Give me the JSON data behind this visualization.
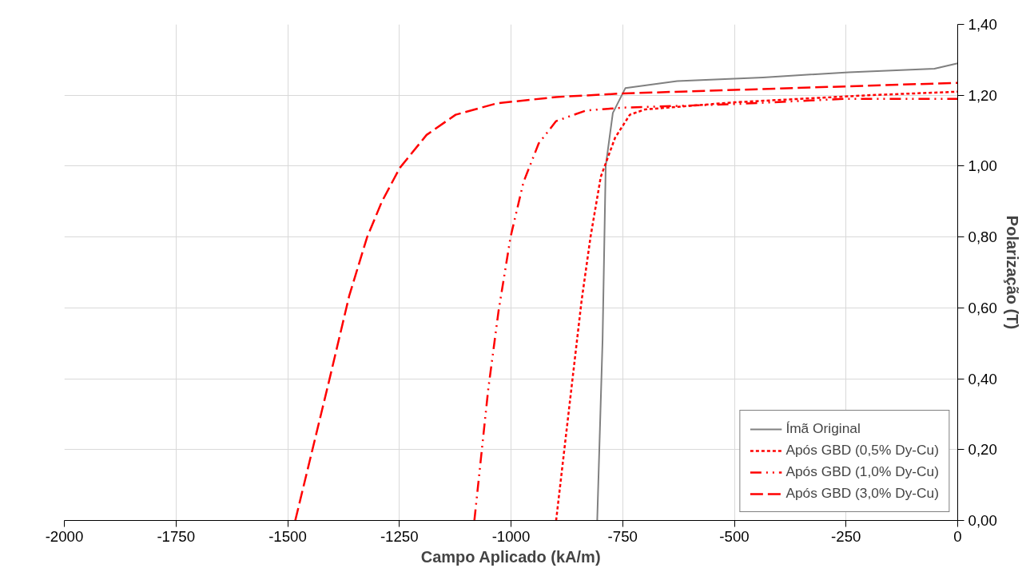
{
  "chart_data": {
    "type": "line",
    "xlabel": "Campo Aplicado (kA/m)",
    "ylabel": "Polarização (T)",
    "xlim": [
      -2000,
      0
    ],
    "xticks": [
      -2000,
      -1750,
      -1500,
      -1250,
      -1000,
      -750,
      -500,
      -250,
      0
    ],
    "ylim": [
      0,
      1.4
    ],
    "yticks": [
      {
        "value": 0,
        "label": "0,00"
      },
      {
        "value": 0.2,
        "label": "0,20"
      },
      {
        "value": 0.4,
        "label": "0,40"
      },
      {
        "value": 0.6,
        "label": "0,60"
      },
      {
        "value": 0.8,
        "label": "0,80"
      },
      {
        "value": 1.0,
        "label": "1,00"
      },
      {
        "value": 1.2,
        "label": "1,20"
      },
      {
        "value": 1.4,
        "label": "1,40"
      }
    ],
    "grid": true,
    "legend": "bottom right",
    "series": [
      {
        "name": "Ímã Original",
        "color": "#808080",
        "line_style": "solid",
        "x": [
          -807,
          -795,
          -788,
          -772,
          -744,
          -628,
          -436,
          -244,
          -52,
          0
        ],
        "values": [
          0,
          0.51,
          1.0,
          1.15,
          1.22,
          1.24,
          1.25,
          1.265,
          1.275,
          1.29
        ]
      },
      {
        "name": "Após GBD (0,5% Dy-Cu)",
        "color": "#ff0000",
        "line_style": "dotted",
        "x": [
          -899,
          -865,
          -842,
          -822,
          -799,
          -767,
          -734,
          -700,
          -500,
          -200,
          0
        ],
        "values": [
          0,
          0.37,
          0.62,
          0.8,
          0.97,
          1.08,
          1.145,
          1.16,
          1.18,
          1.2,
          1.21
        ]
      },
      {
        "name": "Após GBD (1,0% Dy-Cu)",
        "color": "#ff0000",
        "line_style": "dashdot",
        "x": [
          -1082,
          -1051,
          -1028,
          -1001,
          -972,
          -938,
          -899,
          -832,
          -750,
          -500,
          -250,
          0
        ],
        "values": [
          0,
          0.37,
          0.59,
          0.8,
          0.955,
          1.064,
          1.127,
          1.157,
          1.165,
          1.175,
          1.19,
          1.19
        ]
      },
      {
        "name": "Após GBD (3,0% Dy-Cu)",
        "color": "#ff0000",
        "line_style": "dashed",
        "x": [
          -1483,
          -1408,
          -1362,
          -1322,
          -1289,
          -1249,
          -1189,
          -1124,
          -1032,
          -899,
          -750,
          -500,
          -250,
          0
        ],
        "values": [
          0,
          0.39,
          0.635,
          0.8,
          0.9,
          0.995,
          1.088,
          1.145,
          1.177,
          1.195,
          1.205,
          1.215,
          1.225,
          1.235
        ]
      }
    ]
  }
}
